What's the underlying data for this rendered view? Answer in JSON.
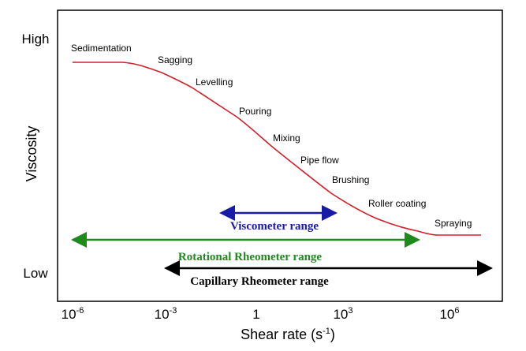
{
  "y_axis": {
    "label": "Viscosity",
    "high": "High",
    "low": "Low"
  },
  "x_axis": {
    "label": "Shear rate (s",
    "label_exponent": "-1",
    "label_end": ")",
    "ticks": [
      {
        "base": "10",
        "exponent": "-6"
      },
      {
        "base": "10",
        "exponent": "-3"
      },
      {
        "base": "1"
      },
      {
        "base": "10",
        "exponent": "3"
      },
      {
        "base": "10",
        "exponent": "6"
      }
    ]
  },
  "processes": [
    "Sedimentation",
    "Sagging",
    "Levelling",
    "Pouring",
    "Mixing",
    "Pipe flow",
    "Brushing",
    "Roller coating",
    "Spraying"
  ],
  "ranges": [
    "Viscometer range",
    "Rotational Rheometer range",
    "Capillary Rheometer range"
  ]
}
